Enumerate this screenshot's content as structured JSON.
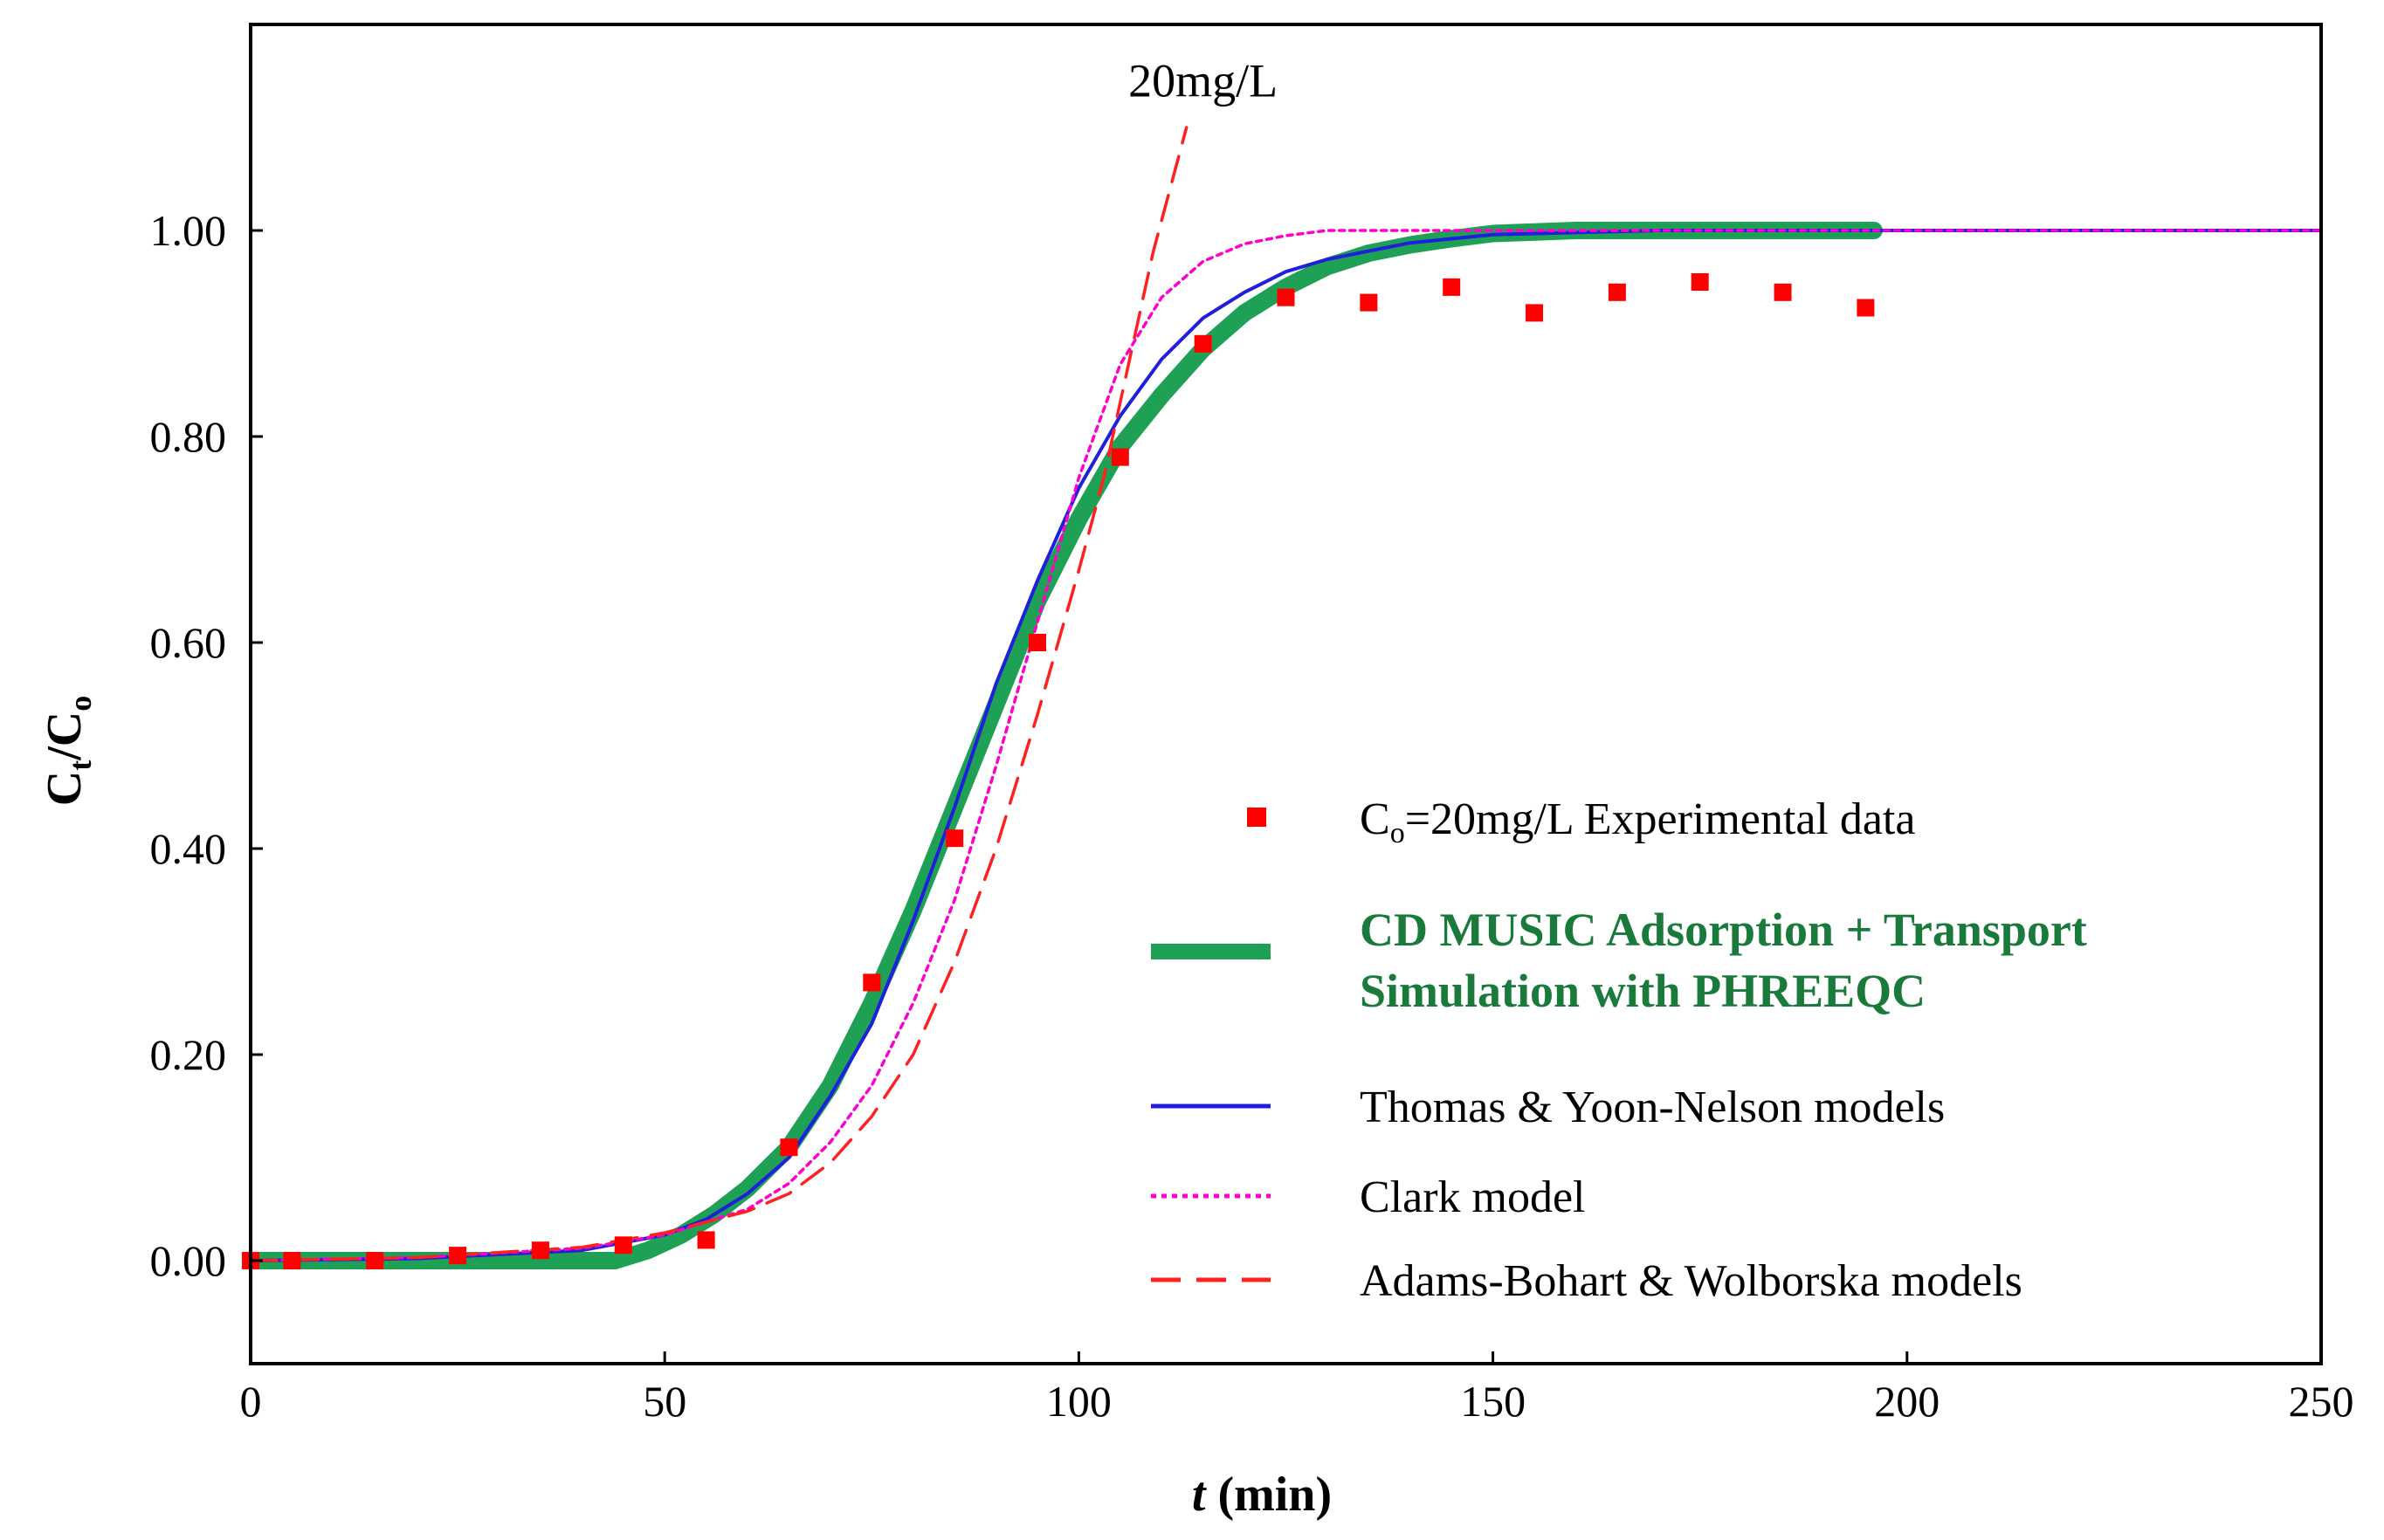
{
  "chart_data": {
    "type": "line",
    "title": "",
    "xlabel": "(min)",
    "xlabel_var": "t",
    "ylabel_main": "C",
    "ylabel_sub_t": "t",
    "ylabel_sep": "/C",
    "ylabel_sub_o": "o",
    "xlim": [
      0,
      250
    ],
    "ylim": [
      -0.1,
      1.2
    ],
    "x_ticks": [
      0,
      50,
      100,
      150,
      200,
      250
    ],
    "x_tick_labels": [
      "0",
      "50",
      "100",
      "150",
      "200",
      "250"
    ],
    "y_ticks": [
      0,
      0.2,
      0.4,
      0.6,
      0.8,
      1.0
    ],
    "y_tick_labels": [
      "0.00",
      "0.20",
      "0.40",
      "0.60",
      "0.80",
      "1.00"
    ],
    "grid": false,
    "legend_position": "bottom-right",
    "annotation": {
      "text": "20mg/L",
      "x": 115,
      "y": 1.13
    },
    "series": [
      {
        "name_prefix": "C",
        "name_sub": "o",
        "name_suffix": "=20mg/L  Experimental data",
        "kind": "scatter",
        "color": "#ff0000",
        "x": [
          0,
          5,
          15,
          25,
          35,
          45,
          55,
          65,
          75,
          85,
          95,
          105,
          115,
          125,
          135,
          145,
          155,
          165,
          175,
          185,
          195
        ],
        "values": [
          0.0,
          0.0,
          0.0,
          0.005,
          0.01,
          0.015,
          0.02,
          0.11,
          0.27,
          0.41,
          0.6,
          0.78,
          0.89,
          0.935,
          0.93,
          0.945,
          0.92,
          0.94,
          0.95,
          0.94,
          0.925
        ]
      },
      {
        "name_line1": "CD MUSIC Adsorption + Transport",
        "name_line2": "Simulation with PHREEQC",
        "kind": "line",
        "color": "#1fa155",
        "x": [
          0,
          44,
          48,
          52,
          56,
          60,
          65,
          70,
          75,
          80,
          85,
          90,
          95,
          100,
          105,
          110,
          115,
          120,
          125,
          130,
          135,
          140,
          145,
          150,
          160,
          170,
          180,
          190,
          196
        ],
        "values": [
          0.0,
          0.0,
          0.01,
          0.025,
          0.045,
          0.07,
          0.11,
          0.17,
          0.25,
          0.34,
          0.44,
          0.54,
          0.64,
          0.72,
          0.79,
          0.84,
          0.885,
          0.92,
          0.945,
          0.965,
          0.978,
          0.986,
          0.992,
          0.997,
          1.0,
          1.0,
          1.0,
          1.0,
          1.0
        ]
      },
      {
        "name": "Thomas & Yoon-Nelson models",
        "kind": "line",
        "color": "#1f1fdc",
        "x": [
          0,
          20,
          40,
          50,
          55,
          60,
          65,
          70,
          75,
          80,
          85,
          90,
          95,
          100,
          105,
          110,
          115,
          120,
          125,
          130,
          140,
          150,
          170,
          200,
          250
        ],
        "values": [
          0.0,
          0.002,
          0.01,
          0.025,
          0.04,
          0.065,
          0.1,
          0.16,
          0.23,
          0.33,
          0.44,
          0.56,
          0.66,
          0.75,
          0.82,
          0.875,
          0.915,
          0.94,
          0.96,
          0.972,
          0.988,
          0.996,
          1.0,
          1.0,
          1.0
        ]
      },
      {
        "name": "Clark model",
        "kind": "line",
        "color": "#ff00cc",
        "x": [
          0,
          20,
          40,
          50,
          60,
          65,
          70,
          75,
          80,
          85,
          90,
          95,
          100,
          105,
          110,
          115,
          120,
          125,
          130,
          140,
          250
        ],
        "values": [
          0.0,
          0.003,
          0.012,
          0.025,
          0.05,
          0.075,
          0.115,
          0.17,
          0.25,
          0.35,
          0.48,
          0.62,
          0.76,
          0.87,
          0.935,
          0.97,
          0.987,
          0.995,
          1.0,
          1.0,
          1.0
        ]
      },
      {
        "name": "Adams-Bohart & Wolborska models",
        "kind": "line",
        "color": "#ff2020",
        "x": [
          0,
          20,
          40,
          50,
          60,
          65,
          70,
          75,
          80,
          85,
          90,
          95,
          100,
          103,
          106,
          109,
          113
        ],
        "values": [
          0.0,
          0.003,
          0.013,
          0.027,
          0.048,
          0.065,
          0.095,
          0.14,
          0.2,
          0.29,
          0.4,
          0.53,
          0.67,
          0.76,
          0.87,
          0.98,
          1.1
        ]
      }
    ]
  }
}
